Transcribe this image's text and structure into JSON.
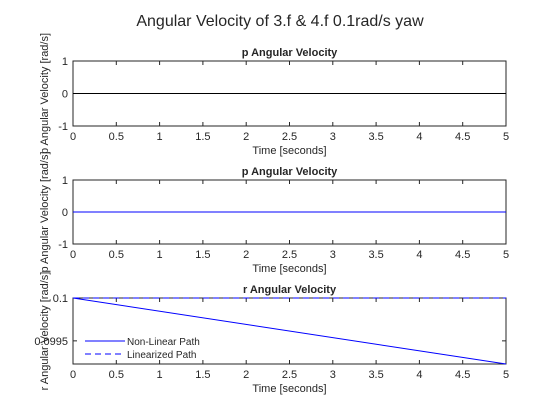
{
  "figure": {
    "title": "Angular Velocity of 3.f & 4.f 0.1rad/s yaw"
  },
  "chart_data": [
    {
      "type": "line",
      "title": "p Angular Velocity",
      "xlabel": "Time [seconds]",
      "ylabel": "p Angular Velocity [rad/s]",
      "xlim": [
        0,
        5
      ],
      "ylim": [
        -1,
        1
      ],
      "xticks": [
        "0",
        "0.5",
        "1",
        "1.5",
        "2",
        "2.5",
        "3",
        "3.5",
        "4",
        "4.5",
        "5"
      ],
      "yticks": [
        "-1",
        "0",
        "1"
      ],
      "grid": false,
      "series": [
        {
          "x": [
            0,
            5
          ],
          "y": [
            0,
            0
          ],
          "color": "#000000",
          "style": "solid"
        }
      ]
    },
    {
      "type": "line",
      "title": "p Angular Velocity",
      "xlabel": "Time [seconds]",
      "ylabel": "p Angular Velocity [rad/s]",
      "xlim": [
        0,
        5
      ],
      "ylim": [
        -1,
        1
      ],
      "xticks": [
        "0",
        "0.5",
        "1",
        "1.5",
        "2",
        "2.5",
        "3",
        "3.5",
        "4",
        "4.5",
        "5"
      ],
      "yticks": [
        "-1",
        "0",
        "1"
      ],
      "grid": false,
      "series": [
        {
          "x": [
            0,
            5
          ],
          "y": [
            0,
            0
          ],
          "color": "#0000ff",
          "style": "solid"
        }
      ]
    },
    {
      "type": "line",
      "title": "r Angular Velocity",
      "xlabel": "Time [seconds]",
      "ylabel": "r Angular Velocity [rad/s]",
      "xlim": [
        0,
        5
      ],
      "ylim": [
        0.09923,
        0.1
      ],
      "xticks": [
        "0",
        "0.5",
        "1",
        "1.5",
        "2",
        "2.5",
        "3",
        "3.5",
        "4",
        "4.5",
        "5"
      ],
      "yticks": [
        "0.0995",
        "0.1"
      ],
      "grid": false,
      "legend_position": "bottom-left",
      "series": [
        {
          "name": "Non-Linear Path",
          "x": [
            0,
            5
          ],
          "y": [
            0.1,
            0.09923
          ],
          "color": "#0000ff",
          "style": "solid"
        },
        {
          "name": "Linearized Path",
          "x": [
            0,
            5
          ],
          "y": [
            0.1,
            0.1
          ],
          "color": "#0000ff",
          "style": "dashed"
        }
      ]
    }
  ]
}
